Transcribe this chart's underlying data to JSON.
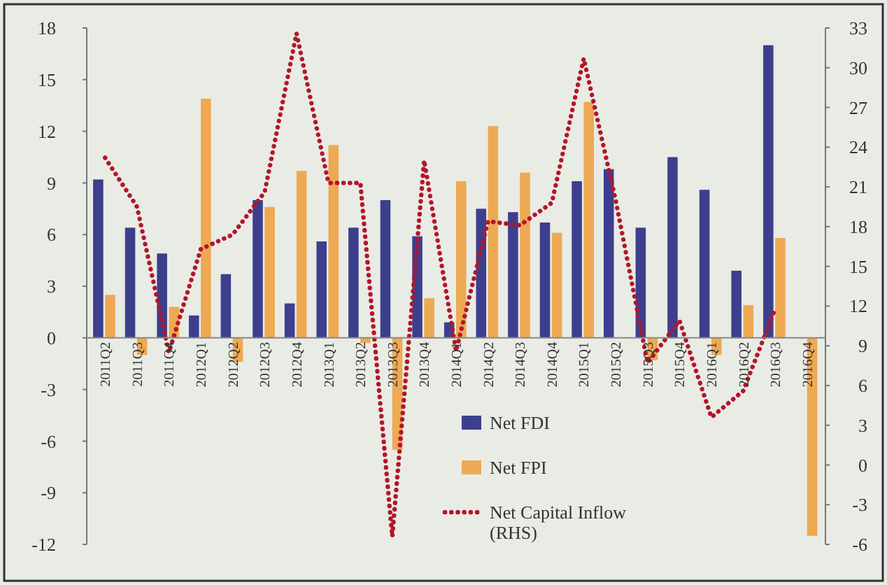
{
  "chart_data": {
    "type": "bar",
    "categories": [
      "2011Q2",
      "2011Q3",
      "2011Q4",
      "2012Q1",
      "2012Q2",
      "2012Q3",
      "2012Q4",
      "2013Q1",
      "2013Q2",
      "2013Q3",
      "2013Q4",
      "2014Q1",
      "2014Q2",
      "2014Q3",
      "2014Q4",
      "2015Q1",
      "2015Q2",
      "2015Q3",
      "2015Q4",
      "2016Q1",
      "2016Q2",
      "2016Q3",
      "2016Q4"
    ],
    "series": [
      {
        "name": "Net FDI",
        "color": "#3c3f8e",
        "values": [
          9.2,
          6.4,
          4.9,
          1.3,
          3.7,
          8.0,
          2.0,
          5.6,
          6.4,
          8.0,
          5.9,
          0.9,
          7.5,
          7.3,
          6.7,
          9.1,
          9.8,
          6.4,
          10.5,
          8.6,
          3.9,
          17.0,
          null
        ]
      },
      {
        "name": "Net FPI",
        "color": "#eea952",
        "values": [
          2.5,
          -1.0,
          1.8,
          13.9,
          -1.4,
          7.6,
          9.7,
          11.2,
          -0.3,
          -6.5,
          2.3,
          9.1,
          12.3,
          9.6,
          6.1,
          13.7,
          0.0,
          -1.3,
          0.0,
          -1.0,
          1.9,
          5.8,
          -11.5
        ]
      },
      {
        "name": "Net Capital Inflow (RHS)",
        "type": "line",
        "axis": "y2",
        "color": "#b3162a",
        "line_style": "dotted",
        "values": [
          23.2,
          19.5,
          8.5,
          16.3,
          17.4,
          20.6,
          32.6,
          21.3,
          21.3,
          -5.4,
          23.0,
          8.6,
          18.4,
          18.1,
          19.8,
          30.7,
          20.0,
          7.7,
          10.9,
          3.6,
          5.6,
          11.8,
          null
        ]
      }
    ],
    "ylim": [
      -12,
      18
    ],
    "yticks": [
      -12,
      -9,
      -6,
      -3,
      0,
      3,
      6,
      9,
      12,
      15,
      18
    ],
    "y2lim": [
      -6,
      33
    ],
    "y2ticks": [
      -6,
      -3,
      0,
      3,
      6,
      9,
      12,
      15,
      18,
      21,
      24,
      27,
      30,
      33
    ],
    "grid": false,
    "legend": "bottom"
  }
}
